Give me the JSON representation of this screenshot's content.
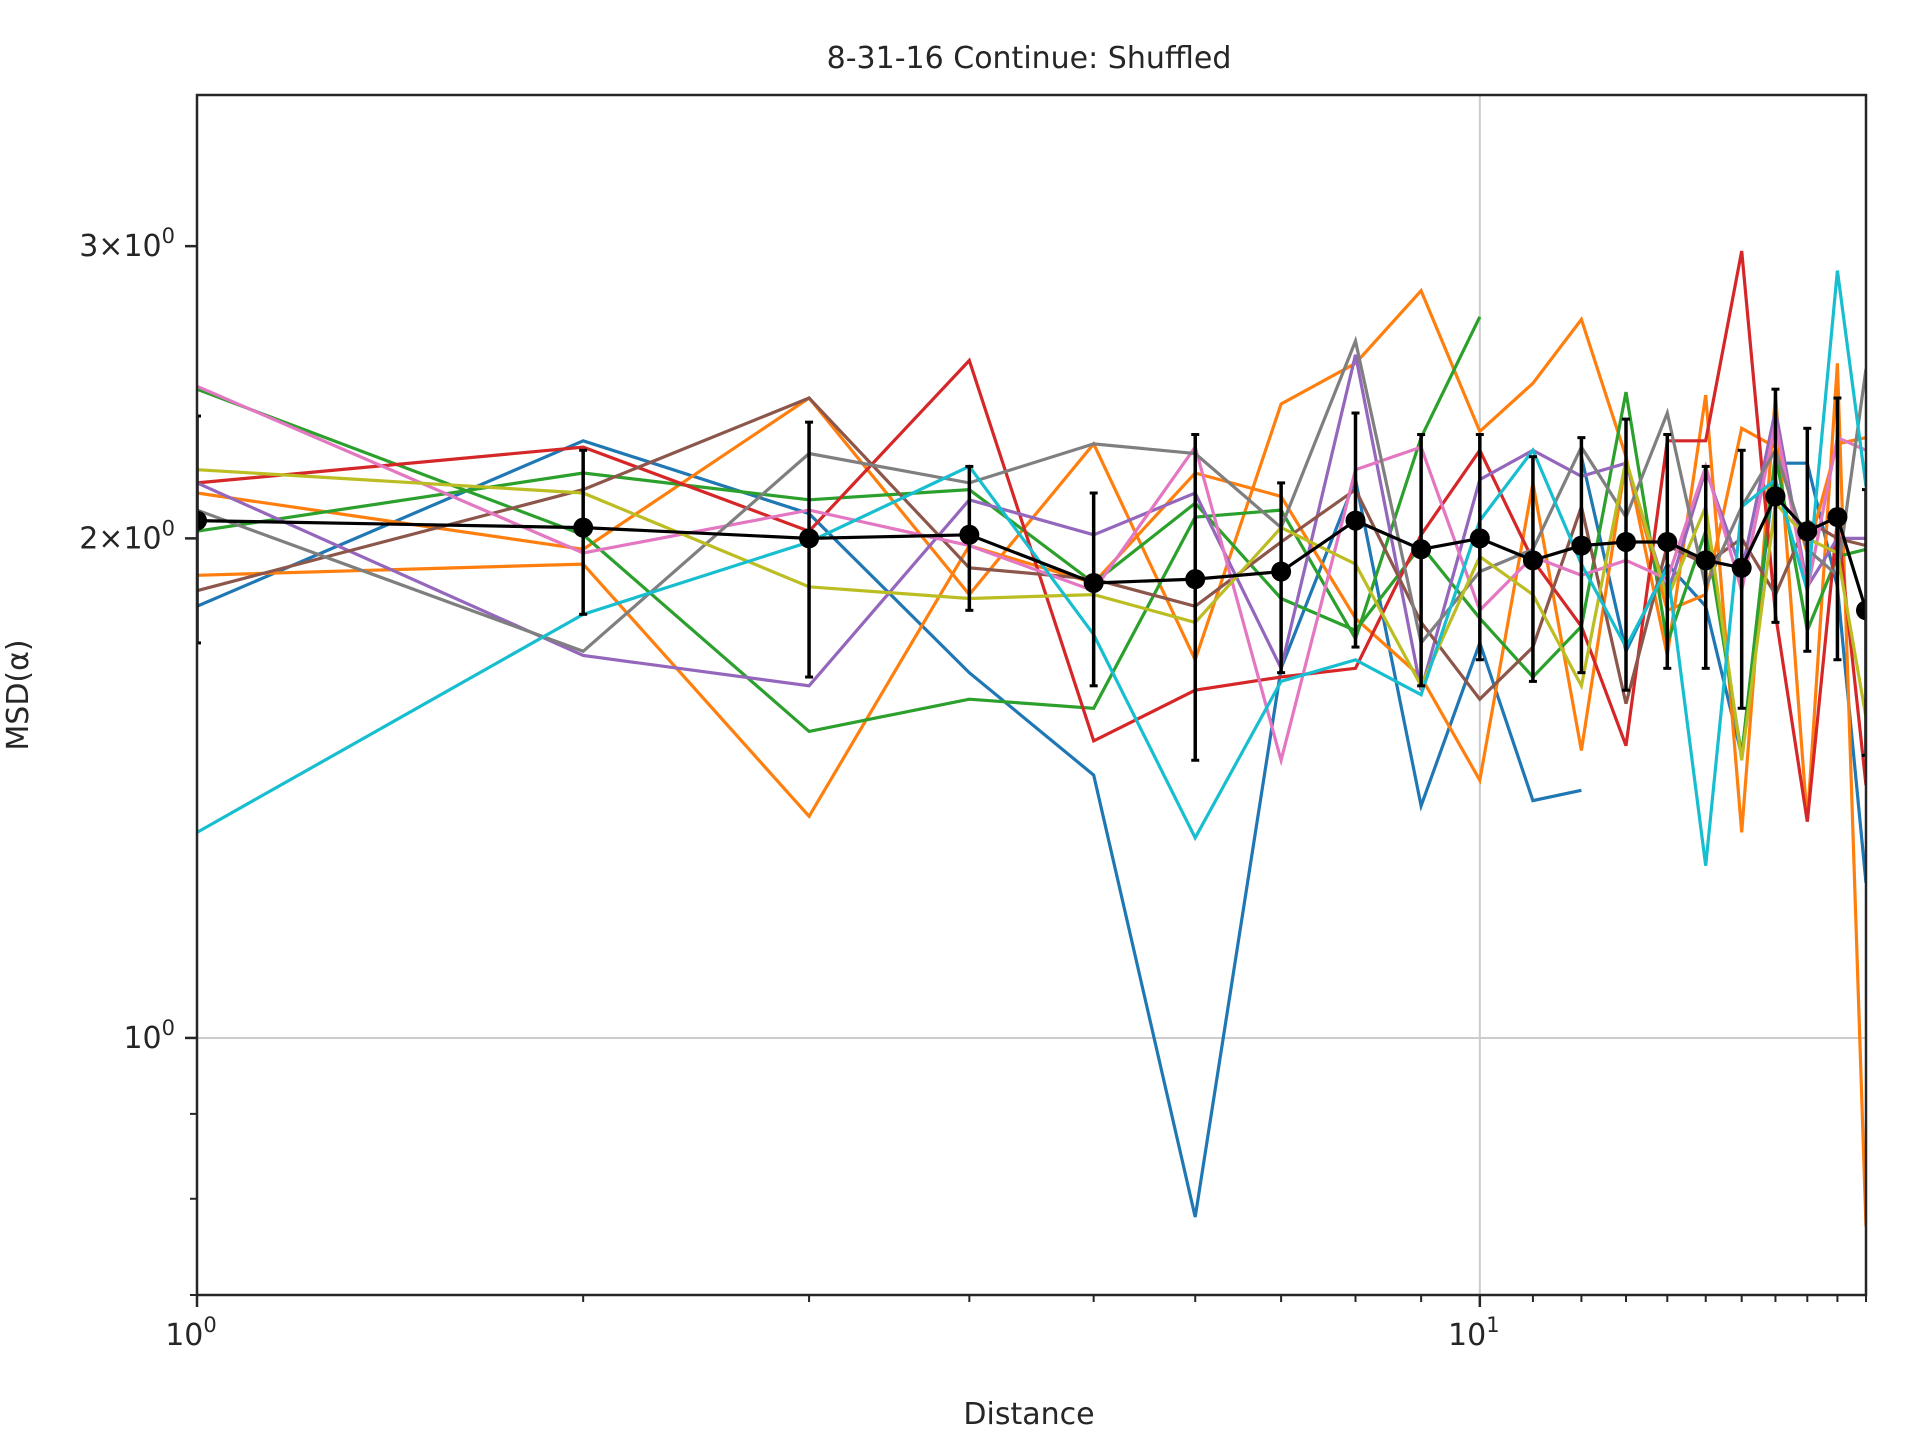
{
  "chart_data": {
    "type": "line",
    "title": "8-31-16 Continue: Shuffled",
    "xlabel": "Distance",
    "ylabel": "MSD(α)",
    "xscale": "log",
    "yscale": "log",
    "xlim": [
      1,
      20
    ],
    "ylim": [
      0.7,
      3.7
    ],
    "x_ticks": [
      {
        "value": 1,
        "base": "10",
        "exp": "0"
      },
      {
        "value": 10,
        "base": "10",
        "exp": "1"
      }
    ],
    "y_ticks": [
      {
        "value": 3,
        "base": "3×10",
        "exp": "0"
      },
      {
        "value": 2,
        "base": "2×10",
        "exp": "0"
      },
      {
        "value": 1,
        "base": "10",
        "exp": "0"
      }
    ],
    "grid": {
      "x_major": [
        10
      ],
      "y_major": [
        1
      ]
    },
    "legend": "none",
    "series": [
      {
        "color": "#1f77b4",
        "x": [
          1,
          2,
          3,
          4,
          5,
          6,
          7,
          8,
          9,
          10,
          11,
          12
        ],
        "y": [
          1.82,
          2.29,
          2.07,
          1.66,
          1.44,
          0.78,
          1.67,
          2.17,
          1.38,
          1.73,
          1.39,
          1.41
        ]
      },
      {
        "color": "#1f77b4",
        "x": [
          12,
          13,
          14,
          15,
          16,
          17,
          18,
          19,
          20
        ],
        "y": [
          2.24,
          1.71,
          1.93,
          1.82,
          1.48,
          2.22,
          2.22,
          1.87,
          1.24
        ]
      },
      {
        "color": "#ff7f0e",
        "x": [
          1,
          2,
          3,
          4,
          5,
          6,
          7,
          8,
          9,
          10,
          11,
          12,
          13,
          14,
          15,
          16,
          17,
          18,
          19,
          20
        ],
        "y": [
          2.13,
          1.97,
          2.43,
          1.85,
          2.28,
          1.69,
          2.41,
          2.55,
          2.82,
          2.32,
          2.48,
          2.71,
          2.24,
          1.7,
          2.44,
          1.33,
          2.44,
          1.35,
          2.55,
          0.77
        ]
      },
      {
        "color": "#ff7f0e",
        "x": [
          1,
          2,
          3,
          4,
          5,
          6,
          7,
          8,
          9,
          10,
          11,
          12,
          13,
          14,
          15,
          16,
          17,
          18,
          19,
          20
        ],
        "y": [
          1.9,
          1.93,
          1.36,
          1.98,
          1.88,
          2.19,
          2.12,
          1.79,
          1.65,
          1.43,
          2.16,
          1.49,
          2.23,
          1.81,
          1.85,
          2.33,
          2.27,
          1.96,
          2.28,
          2.3
        ]
      },
      {
        "color": "#2ca02c",
        "x": [
          1,
          2,
          3,
          4,
          5,
          6,
          7,
          8,
          9,
          10
        ],
        "y": [
          2.46,
          2.01,
          1.53,
          1.6,
          1.58,
          2.06,
          2.08,
          1.74,
          2.3,
          2.72
        ]
      },
      {
        "color": "#2ca02c",
        "x": [
          1,
          2,
          3,
          4,
          5,
          6,
          7,
          8,
          9,
          10,
          11,
          12,
          13,
          14,
          15,
          16,
          17,
          18,
          19,
          20
        ],
        "y": [
          2.02,
          2.19,
          2.11,
          2.14,
          1.88,
          2.1,
          1.84,
          1.76,
          1.98,
          1.79,
          1.65,
          1.77,
          2.45,
          1.73,
          2.02,
          1.48,
          2.25,
          1.76,
          1.95,
          1.97
        ]
      },
      {
        "color": "#d62728",
        "x": [
          1,
          2,
          3,
          4,
          5,
          6,
          7,
          8,
          9,
          10,
          11,
          12,
          13,
          14,
          15,
          16,
          17,
          18,
          19,
          20
        ],
        "y": [
          2.16,
          2.27,
          2.02,
          2.56,
          1.51,
          1.62,
          1.65,
          1.67,
          2.01,
          2.26,
          1.94,
          1.77,
          1.5,
          2.29,
          2.29,
          2.98,
          1.8,
          1.35,
          2.05,
          1.42
        ]
      },
      {
        "color": "#9467bd",
        "x": [
          1,
          2,
          3,
          4,
          5,
          6,
          7,
          8,
          9,
          10,
          11,
          12,
          13,
          14,
          15,
          16,
          17,
          18,
          19,
          20
        ],
        "y": [
          2.16,
          1.7,
          1.63,
          2.11,
          2.01,
          2.13,
          1.67,
          2.58,
          1.62,
          2.17,
          2.26,
          2.18,
          2.22,
          1.85,
          2.2,
          1.91,
          2.39,
          1.87,
          2.0,
          2.0
        ]
      },
      {
        "color": "#8c564b",
        "x": [
          1,
          2,
          3,
          4,
          5,
          6,
          7,
          8,
          9,
          10,
          11,
          12,
          13,
          14,
          15,
          16,
          17,
          18,
          19,
          20
        ],
        "y": [
          1.86,
          2.14,
          2.43,
          1.92,
          1.89,
          1.82,
          1.99,
          2.14,
          1.78,
          1.6,
          1.72,
          2.09,
          1.59,
          1.98,
          1.93,
          2.0,
          1.85,
          2.05,
          2.0,
          1.98
        ]
      },
      {
        "color": "#e377c2",
        "x": [
          1,
          2,
          3,
          4,
          5,
          6,
          7,
          8,
          9,
          10,
          11,
          12,
          13,
          14,
          15,
          16,
          17,
          18,
          19,
          20
        ],
        "y": [
          2.47,
          1.96,
          2.08,
          1.98,
          1.86,
          2.27,
          1.47,
          2.2,
          2.27,
          1.81,
          1.95,
          1.9,
          1.94,
          1.89,
          2.21,
          1.86,
          2.35,
          1.86,
          2.3,
          2.26
        ]
      },
      {
        "color": "#7f7f7f",
        "x": [
          1,
          2,
          3,
          4,
          5,
          6,
          7,
          8,
          9,
          10,
          11,
          12,
          13,
          14,
          15,
          16,
          17,
          18,
          19,
          20
        ],
        "y": [
          2.08,
          1.71,
          2.25,
          2.16,
          2.28,
          2.25,
          2.03,
          2.63,
          1.73,
          1.91,
          1.97,
          2.27,
          2.06,
          2.38,
          1.87,
          2.09,
          2.26,
          1.97,
          1.9,
          2.53
        ]
      },
      {
        "color": "#bcbd22",
        "x": [
          1,
          2,
          3,
          4,
          5,
          6,
          7,
          8,
          9,
          10,
          11,
          12,
          13,
          14,
          15,
          16,
          17,
          18,
          19,
          20
        ],
        "y": [
          2.2,
          2.13,
          1.87,
          1.84,
          1.85,
          1.78,
          2.03,
          1.93,
          1.63,
          1.95,
          1.85,
          1.63,
          2.23,
          1.84,
          2.09,
          1.47,
          2.1,
          2.0,
          1.96,
          1.56
        ]
      },
      {
        "color": "#17becf",
        "x": [
          1,
          2,
          3,
          4,
          5,
          6,
          7,
          8,
          9,
          10,
          11,
          12,
          13,
          14,
          15,
          16,
          17,
          18,
          19,
          20
        ],
        "y": [
          1.33,
          1.8,
          1.99,
          2.21,
          1.75,
          1.32,
          1.64,
          1.69,
          1.61,
          2.05,
          2.26,
          1.93,
          1.72,
          1.92,
          1.27,
          2.09,
          2.17,
          1.86,
          2.9,
          2.15
        ]
      }
    ],
    "mean": {
      "color": "#000000",
      "x": [
        1,
        2,
        3,
        4,
        5,
        6,
        7,
        8,
        9,
        10,
        11,
        12,
        13,
        14,
        15,
        16,
        17,
        18,
        19,
        20
      ],
      "y": [
        2.05,
        2.03,
        2.0,
        2.01,
        1.88,
        1.89,
        1.91,
        2.05,
        1.97,
        2.0,
        1.94,
        1.98,
        1.99,
        1.99,
        1.94,
        1.92,
        2.12,
        2.02,
        2.06,
        1.81
      ],
      "err": [
        0.32,
        0.23,
        0.35,
        0.2,
        0.25,
        0.42,
        0.25,
        0.33,
        0.34,
        0.31,
        0.3,
        0.32,
        0.37,
        0.32,
        0.27,
        0.34,
        0.34,
        0.31,
        0.37,
        0.33
      ]
    }
  }
}
